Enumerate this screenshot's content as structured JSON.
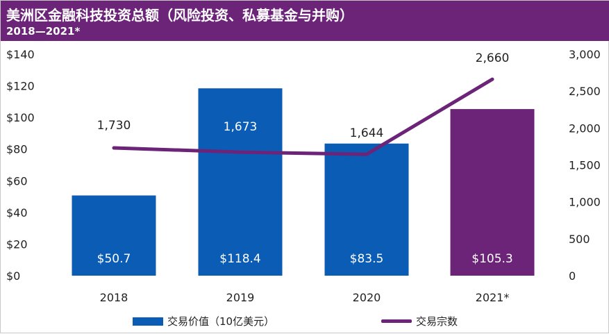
{
  "colors": {
    "header_bg": "#6c2478",
    "bar_blue": "#0b5cb5",
    "bar_purple": "#6c2478",
    "line": "#6c2478"
  },
  "chart_data": {
    "type": "bar",
    "title": "美洲区金融科技投资总额（风险投资、私募基金与并购）",
    "subtitle": "2018—2021*",
    "categories": [
      "2018",
      "2019",
      "2020",
      "2021*"
    ],
    "series": [
      {
        "name": "交易价值（10亿美元）",
        "type": "bar",
        "axis": "left",
        "values": [
          50.7,
          118.4,
          83.5,
          105.3
        ],
        "labels": [
          "$50.7",
          "$118.4",
          "$83.5",
          "$105.3"
        ]
      },
      {
        "name": "交易宗数",
        "type": "line",
        "axis": "right",
        "values": [
          1730,
          1673,
          1644,
          2660
        ],
        "labels": [
          "1,730",
          "1,673",
          "1,644",
          "2,660"
        ]
      }
    ],
    "left_axis": {
      "ylim": [
        0,
        140
      ],
      "ticks": [
        0,
        20,
        40,
        60,
        80,
        100,
        120,
        140
      ],
      "tick_labels": [
        "$0",
        "$20",
        "$40",
        "$60",
        "$80",
        "$100",
        "$120",
        "$140"
      ]
    },
    "right_axis": {
      "ylim": [
        0,
        3000
      ],
      "ticks": [
        0,
        500,
        1000,
        1500,
        2000,
        2500,
        3000
      ],
      "tick_labels": [
        "0",
        "500",
        "1,000",
        "1,500",
        "2,000",
        "2,500",
        "3,000"
      ]
    },
    "legend": {
      "position": "bottom",
      "items": [
        "交易价值（10亿美元）",
        "交易宗数"
      ]
    }
  }
}
